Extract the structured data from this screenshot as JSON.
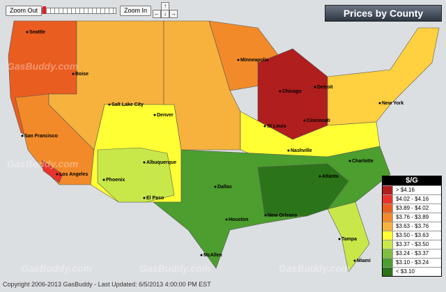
{
  "controls": {
    "zoom_out": "Zoom Out",
    "zoom_in": "Zoom In"
  },
  "title": "Prices by County",
  "cities": [
    "Seattle",
    "Boise",
    "Minneapolis",
    "Detroit",
    "Chicago",
    "Salt Lake City",
    "Denver",
    "San Francisco",
    "St Louis",
    "Cincinnati",
    "New York",
    "Los Angeles",
    "Albuquerque",
    "Phoenix",
    "Nashville",
    "Charlotte",
    "Dallas",
    "Atlanta",
    "El Paso",
    "Houston",
    "New Orleans",
    "Tampa",
    "McAllen",
    "Miami"
  ],
  "legend": {
    "title": "$/G",
    "items": [
      {
        "label": "> $4.16",
        "color": "#b01e1e"
      },
      {
        "label": "$4.02 - $4.16",
        "color": "#e8332a"
      },
      {
        "label": "$3.89 - $4.02",
        "color": "#ea5d20"
      },
      {
        "label": "$3.76 - $3.89",
        "color": "#f28a2a"
      },
      {
        "label": "$3.63 - $3.76",
        "color": "#f6b23c"
      },
      {
        "label": "$3.50 - $3.63",
        "color": "#ffff33"
      },
      {
        "label": "$3.37 - $3.50",
        "color": "#c8e84a"
      },
      {
        "label": "$3.24 - $3.37",
        "color": "#7fbf3f"
      },
      {
        "label": "$3.10 - $3.24",
        "color": "#4c9e2e"
      },
      {
        "label": "< $3.10",
        "color": "#2c7419"
      }
    ]
  },
  "watermark": "GasBuddy.com",
  "footer": "Copyright 2006-2013 GasBuddy - Last Updated: 6/5/2013 4:00:00 PM EST"
}
